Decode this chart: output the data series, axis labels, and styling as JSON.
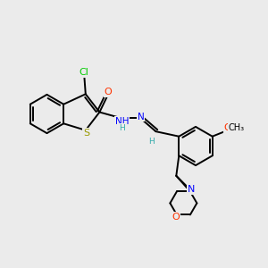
{
  "background_color": "#ebebeb",
  "atom_colors": {
    "C": "#000000",
    "Cl": "#00cc00",
    "S": "#999900",
    "O": "#ff3300",
    "N": "#0000ff",
    "H": "#33aaaa"
  },
  "bond_color": "#000000",
  "bond_width": 1.4,
  "xlim": [
    0,
    10
  ],
  "ylim": [
    0,
    10
  ]
}
